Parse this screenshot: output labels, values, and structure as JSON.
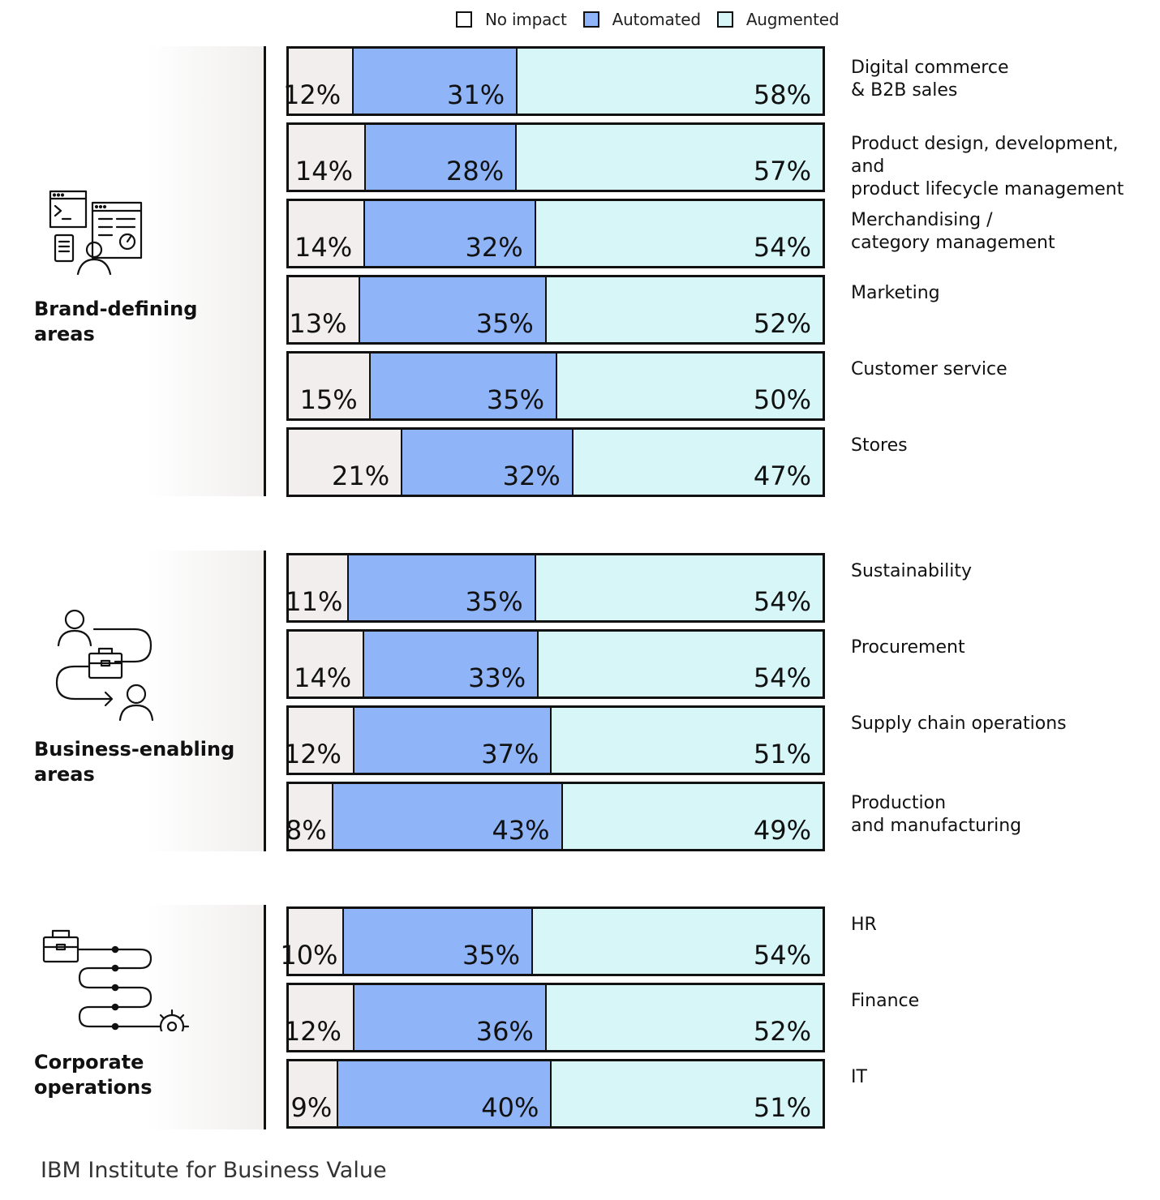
{
  "legend": [
    {
      "label": "No impact",
      "color": "#ffffff"
    },
    {
      "label": "Automated",
      "color": "#8fb4f8"
    },
    {
      "label": "Augmented",
      "color": "#d6f6f8"
    }
  ],
  "colors": {
    "no_impact": "#f2eeee",
    "automated": "#8fb4f8",
    "augmented": "#d6f6f8"
  },
  "chart_data": {
    "type": "bar",
    "orientation": "horizontal",
    "stacked": true,
    "series_names": [
      "No impact",
      "Automated",
      "Augmented"
    ],
    "groups": [
      {
        "name": "Brand-defining\nareas",
        "icon": "developer-dashboard-icon",
        "rows": [
          {
            "label": "Digital commerce\n& B2B sales",
            "values": [
              12,
              31,
              58
            ]
          },
          {
            "label": "Product design, development, and\nproduct lifecycle management",
            "values": [
              14,
              28,
              57
            ]
          },
          {
            "label": "Merchandising /\ncategory management",
            "values": [
              14,
              32,
              54
            ]
          },
          {
            "label": "Marketing",
            "values": [
              13,
              35,
              52
            ]
          },
          {
            "label": "Customer service",
            "values": [
              15,
              35,
              50
            ]
          },
          {
            "label": "Stores",
            "values": [
              21,
              32,
              47
            ]
          }
        ]
      },
      {
        "name": "Business-enabling\nareas",
        "icon": "workflow-people-icon",
        "rows": [
          {
            "label": "Sustainability",
            "values": [
              11,
              35,
              54
            ]
          },
          {
            "label": "Procurement",
            "values": [
              14,
              33,
              54
            ]
          },
          {
            "label": "Supply chain operations",
            "values": [
              12,
              37,
              51
            ]
          },
          {
            "label": "Production\nand manufacturing",
            "values": [
              8,
              43,
              49
            ]
          }
        ]
      },
      {
        "name": "Corporate\noperations",
        "icon": "operations-process-icon",
        "rows": [
          {
            "label": "HR",
            "values": [
              10,
              35,
              54
            ]
          },
          {
            "label": "Finance",
            "values": [
              12,
              36,
              52
            ]
          },
          {
            "label": "IT",
            "values": [
              9,
              40,
              51
            ]
          }
        ]
      }
    ]
  },
  "source": "IBM Institute for Business Value"
}
